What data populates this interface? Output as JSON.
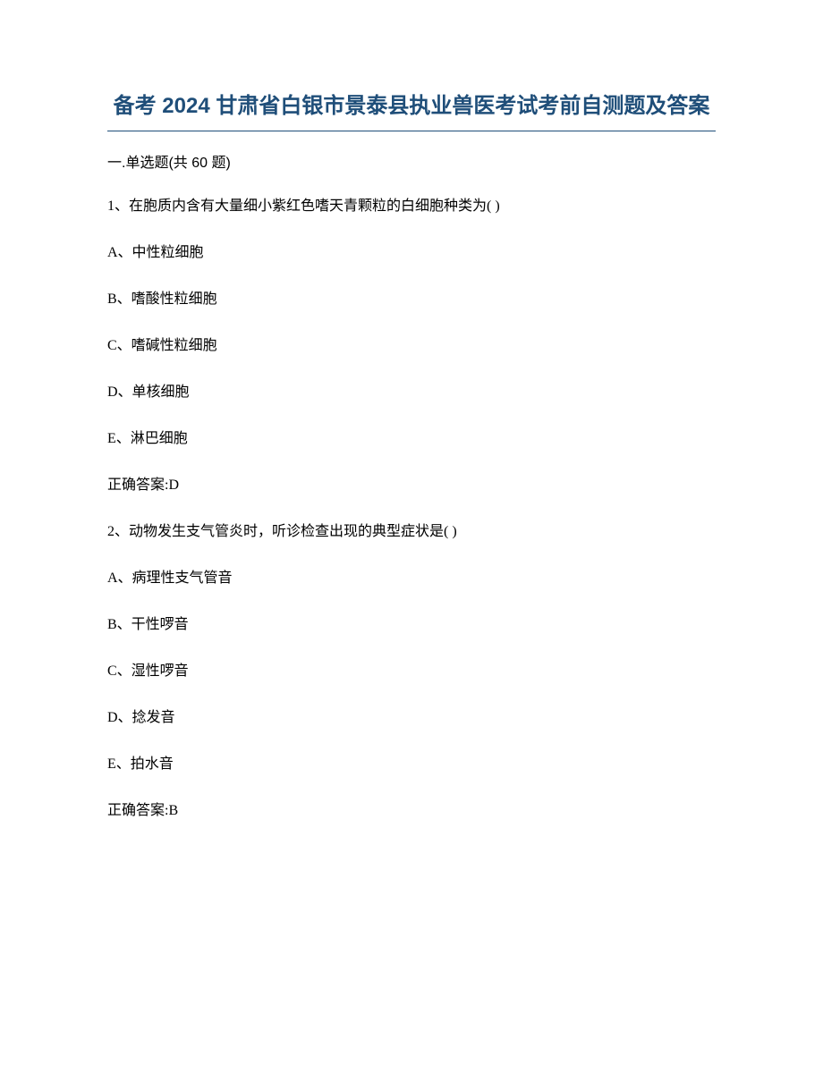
{
  "title": "备考 2024 甘肃省白银市景泰县执业兽医考试考前自测题及答案",
  "title_color": "#1f4e79",
  "divider_color": "#1f4e79",
  "background_color": "#ffffff",
  "text_color": "#000000",
  "section_header": "一.单选题(共 60 题)",
  "questions": [
    {
      "number": "1、",
      "text": "在胞质内含有大量细小紫红色嗜天青颗粒的白细胞种类为( )",
      "options": [
        "A、中性粒细胞",
        "B、嗜酸性粒细胞",
        "C、嗜碱性粒细胞",
        "D、单核细胞",
        "E、淋巴细胞"
      ],
      "answer": "正确答案:D"
    },
    {
      "number": "2、",
      "text": "动物发生支气管炎时，听诊检查出现的典型症状是( )",
      "options": [
        "A、病理性支气管音",
        "B、干性啰音",
        "C、湿性啰音",
        "D、捻发音",
        "E、拍水音"
      ],
      "answer": "正确答案:B"
    }
  ]
}
